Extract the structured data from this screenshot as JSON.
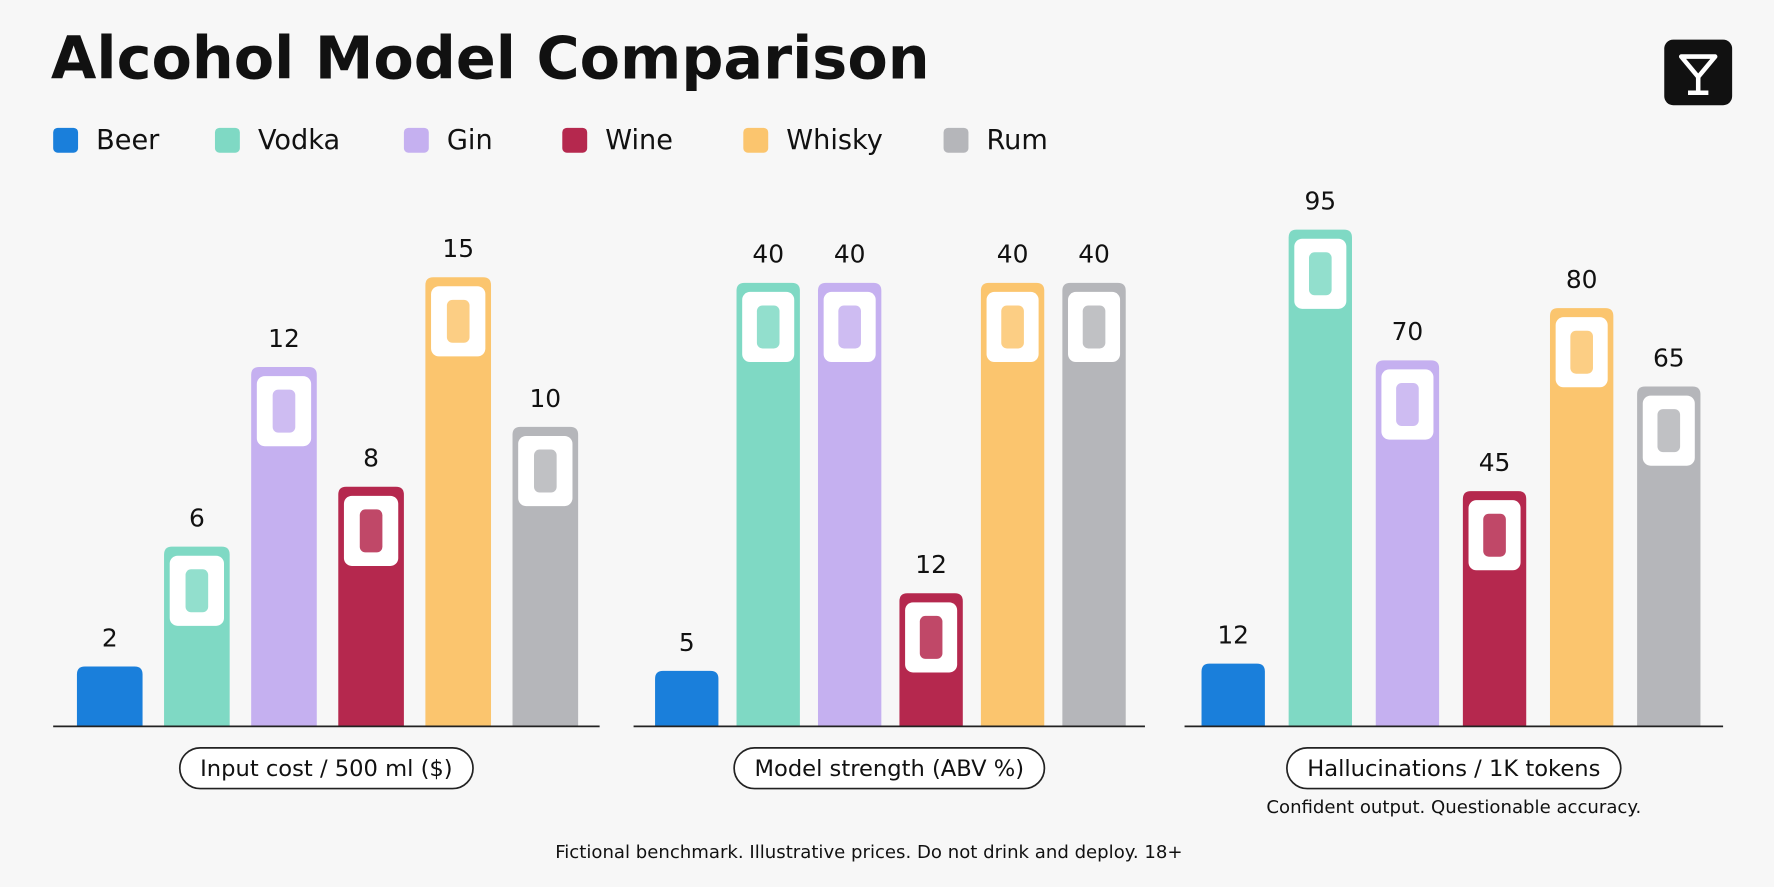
{
  "title": "Alcohol Model Comparison",
  "footer": "Fictional benchmark. Illustrative prices. Do not drink and deploy. 18+",
  "chart_data": [
    {
      "type": "bar",
      "categories": [
        "Beer",
        "Vodka",
        "Gin",
        "Wine",
        "Whisky",
        "Rum"
      ],
      "values": [
        2,
        6,
        12,
        8,
        15,
        10
      ],
      "colors": [
        "#1a7fdb",
        "#7fd9c4",
        "#c5b0f0",
        "#b5284e",
        "#fbc56e",
        "#b5b6ba"
      ],
      "xlabel": "Input cost / 500 ml ($)"
    },
    {
      "type": "bar",
      "categories": [
        "Beer",
        "Vodka",
        "Gin",
        "Wine",
        "Whisky",
        "Rum"
      ],
      "values": [
        5,
        40,
        40,
        12,
        40,
        40
      ],
      "colors": [
        "#1a7fdb",
        "#7fd9c4",
        "#c5b0f0",
        "#b5284e",
        "#fbc56e",
        "#b5b6ba"
      ],
      "xlabel": "Model strength (ABV %)"
    },
    {
      "type": "bar",
      "categories": [
        "Beer",
        "Vodka",
        "Gin",
        "Wine",
        "Whisky",
        "Rum"
      ],
      "values": [
        12,
        95,
        70,
        45,
        80,
        65
      ],
      "colors": [
        "#1a7fdb",
        "#7fd9c4",
        "#c5b0f0",
        "#b5284e",
        "#fbc56e",
        "#b5b6ba"
      ],
      "xlabel": "Hallucinations / 1K tokens",
      "note": "Confident output. Questionable accuracy."
    }
  ]
}
